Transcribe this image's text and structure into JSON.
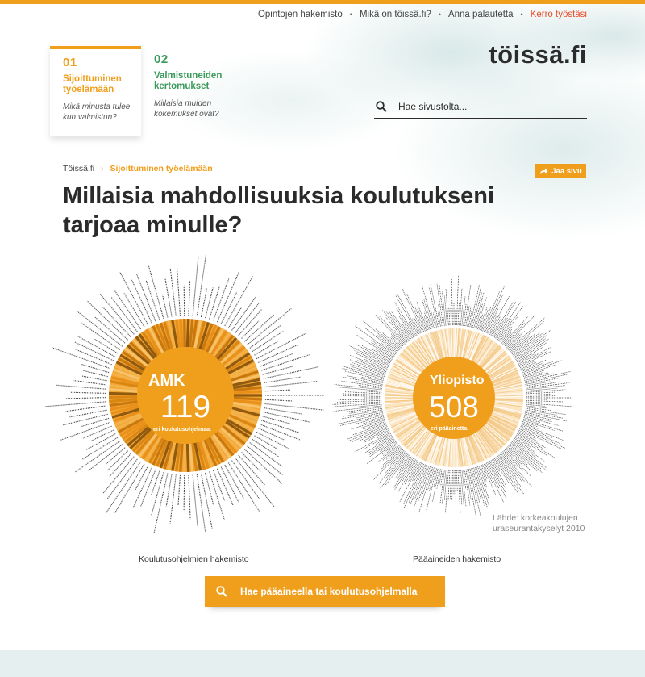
{
  "colors": {
    "accent": "#f09f1c",
    "green": "#3a9a5a",
    "highlight": "#e94e2a",
    "text": "#2b2b2b"
  },
  "utility_nav": [
    "Opintojen hakemisto",
    "Mikä on töissä.fi?",
    "Anna palautetta",
    "Kerro työstäsi"
  ],
  "sections": [
    {
      "num": "01",
      "title": "Sijoittuminen työelämään",
      "desc": "Mikä minusta tulee kun valmistun?"
    },
    {
      "num": "02",
      "title": "Valmistuneiden kertomukset",
      "desc": "Millaisia muiden kokemukset ovat?"
    }
  ],
  "logo": "töissä.fi",
  "search": {
    "placeholder": "Hae sivustolta...",
    "icon": "search-icon"
  },
  "breadcrumb": {
    "home": "Töissä.fi",
    "separator": "›",
    "current": "Sijoittuminen työelämään"
  },
  "share": {
    "label": "Jaa sivu",
    "icon": "share-arrow-icon"
  },
  "headline": "Millaisia mahdollisuuksia koulutukseni tarjoaa minulle?",
  "amk": {
    "title": "AMK",
    "count": "119",
    "subtitle": "eri koulutusohjelmaa.",
    "caption": "Koulutusohjelmien hakemisto"
  },
  "yliopisto": {
    "title": "Yliopisto",
    "count": "508",
    "subtitle": "eri pääainetta.",
    "caption": "Pääaineiden hakemisto"
  },
  "source": "Lähde: korkeakoulujen uraseurantakyselyt 2010",
  "cta": {
    "label": "Hae pääaineella tai koulutusohjelmalla",
    "icon": "search-icon"
  }
}
